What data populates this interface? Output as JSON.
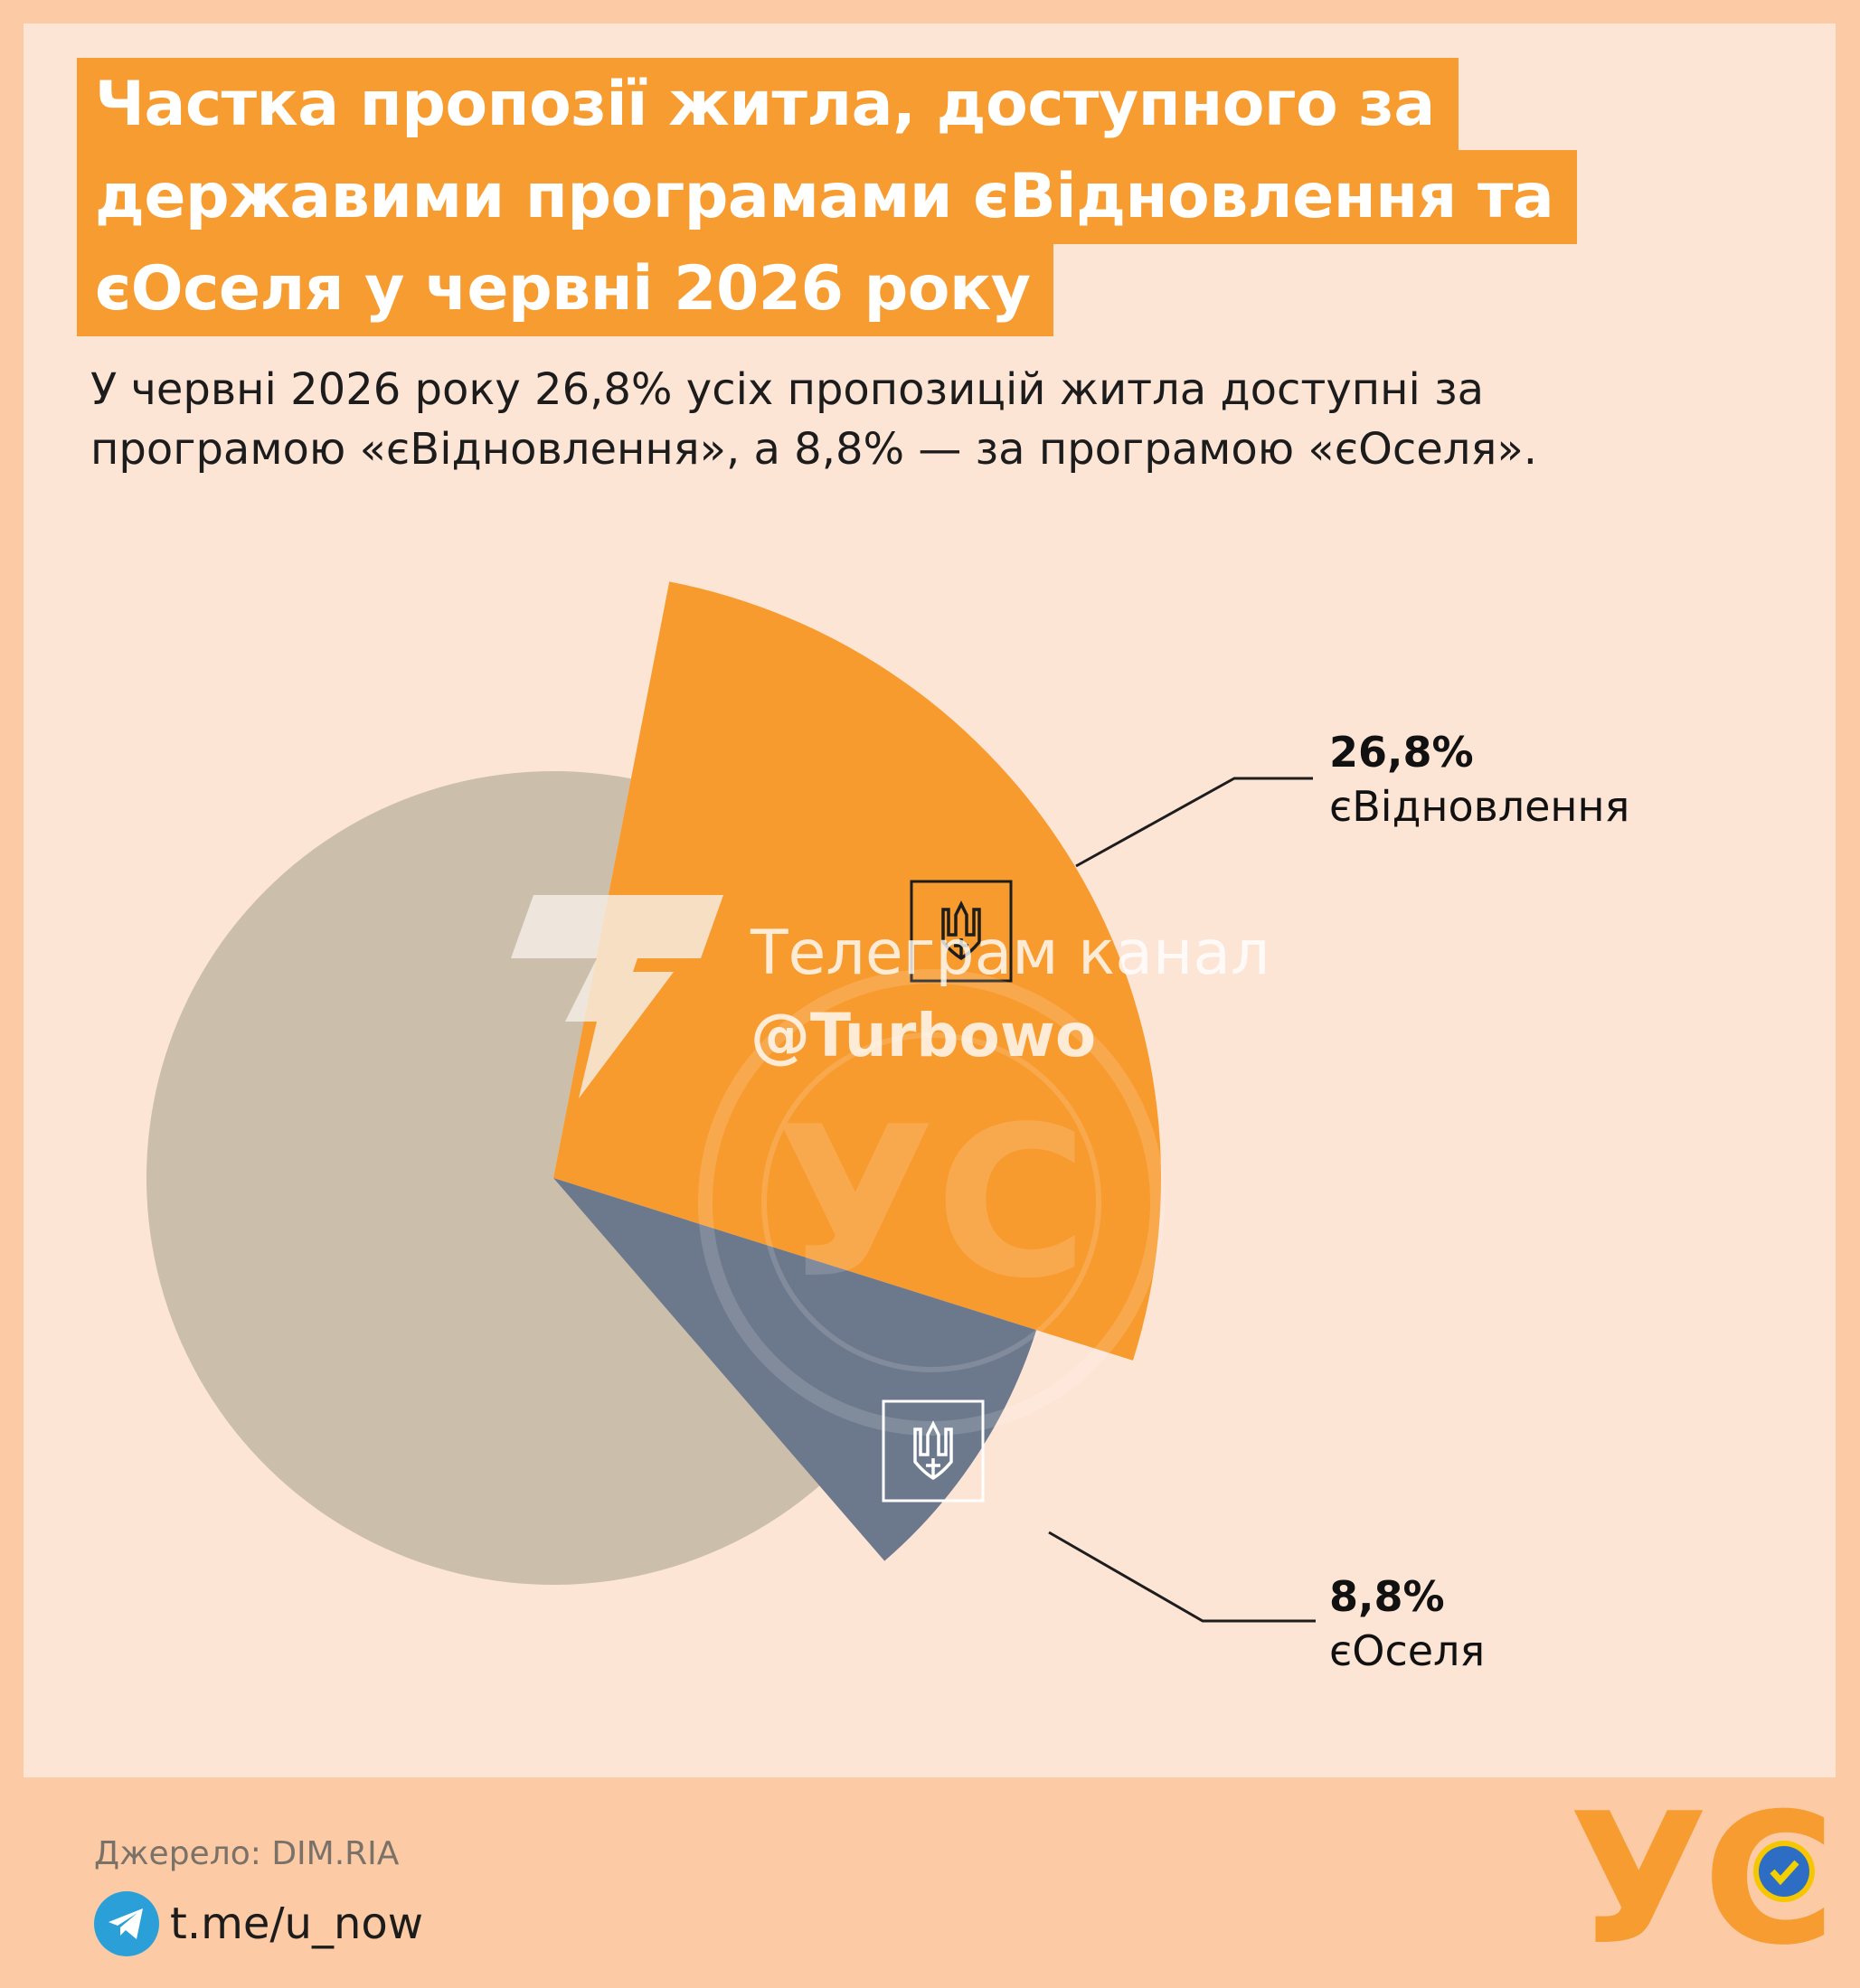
{
  "header": {
    "title_lines": [
      "Частка пропозії житла, доступного за",
      "державими програмами єВідновлення та",
      "єОселя у червні 2026 року"
    ],
    "subtitle_lines": [
      "У червні 2026 року 26,8% усіх пропозицій житла доступні за",
      "програмою «єВідновлення», а 8,8% — за програмою «єОселя»."
    ]
  },
  "chart_data": {
    "type": "pie",
    "slices": [
      {
        "label": "єВідновлення",
        "value": 26.8,
        "value_label": "26,8%",
        "color": "#f89b2f"
      },
      {
        "label": "єОселя",
        "value": 8.8,
        "value_label": "8,8%",
        "color": "#6c788c"
      },
      {
        "label": "",
        "value": 64.4,
        "value_label": "",
        "color": "#cbbeab"
      }
    ]
  },
  "watermark": {
    "line1": "Телеграм канал",
    "line2": "@Turbowo"
  },
  "footer": {
    "source": "Джерело: DIM.RIA",
    "link": "t.me/u_now",
    "logo_text": "УС"
  },
  "colors": {
    "background": "#fccaa4",
    "panel": "#fde5d6",
    "accent": "#f79c31",
    "telegram": "#2a9fd8"
  },
  "icons": [
    "trident-icon",
    "telegram-icon",
    "verified-badge-icon"
  ]
}
